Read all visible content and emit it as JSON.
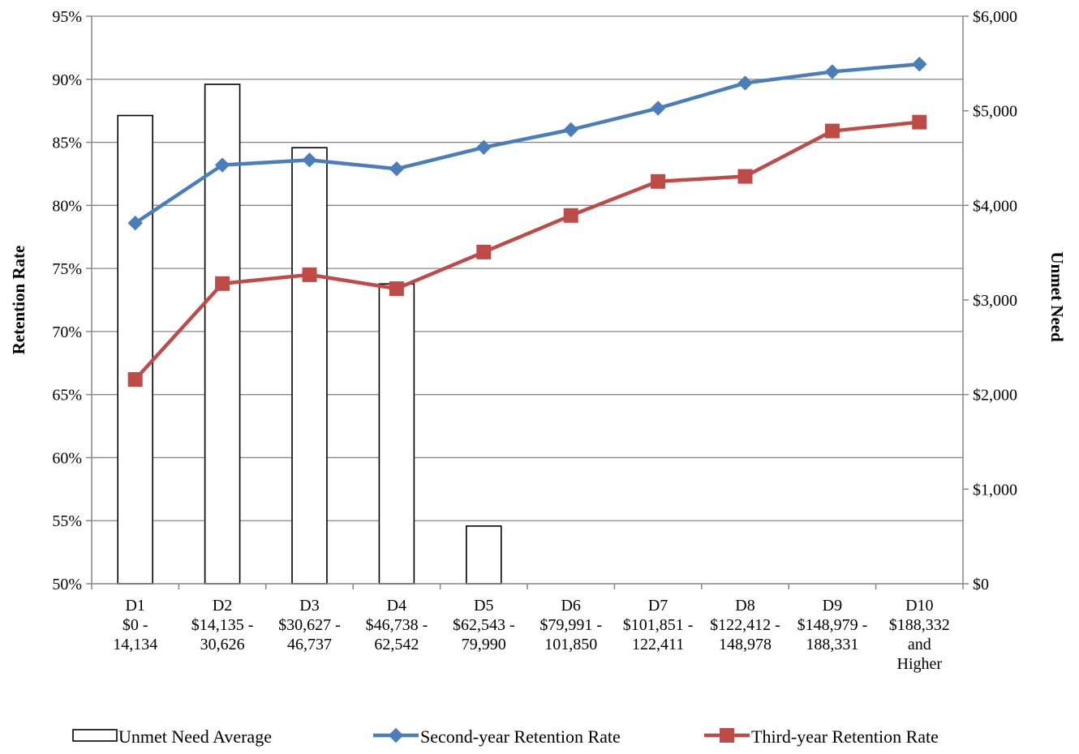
{
  "chart_data": {
    "type": "bar+line",
    "title": "",
    "categories": [
      [
        "D1",
        "$0 -",
        "14,134"
      ],
      [
        "D2",
        "$14,135 -",
        "30,626"
      ],
      [
        "D3",
        "$30,627 -",
        "46,737"
      ],
      [
        "D4",
        "$46,738 -",
        "62,542"
      ],
      [
        "D5",
        "$62,543 -",
        "79,990"
      ],
      [
        "D6",
        "$79,991 -",
        "101,850"
      ],
      [
        "D7",
        "$101,851 -",
        "122,411"
      ],
      [
        "D8",
        "$122,412 -",
        "148,978"
      ],
      [
        "D9",
        "$148,979 -",
        "188,331"
      ],
      [
        "D10",
        "$188,332",
        "and",
        "Higher"
      ]
    ],
    "ylabel": "Retention Rate",
    "y2label": "Unmet Need",
    "ylim": [
      50,
      95
    ],
    "y2lim": [
      0,
      6000
    ],
    "yticks": [
      "50%",
      "55%",
      "60%",
      "65%",
      "70%",
      "75%",
      "80%",
      "85%",
      "90%",
      "95%"
    ],
    "y2ticks": [
      "$0",
      "$1,000",
      "$2,000",
      "$3,000",
      "$4,000",
      "$5,000",
      "$6,000"
    ],
    "gridlines": true,
    "legend_position": "bottom",
    "series": [
      {
        "name": "Unmet Need Average",
        "kind": "bar",
        "axis": "right",
        "values": [
          4950,
          5280,
          4610,
          3170,
          610,
          0,
          0,
          0,
          0,
          0
        ]
      },
      {
        "name": "Second-year Retention Rate",
        "kind": "line",
        "axis": "left",
        "color": "#4a7ebb",
        "marker": "diamond",
        "values": [
          78.6,
          83.2,
          83.6,
          82.9,
          84.6,
          86.0,
          87.7,
          89.7,
          90.6,
          91.2
        ]
      },
      {
        "name": "Third-year Retention Rate",
        "kind": "line",
        "axis": "left",
        "color": "#be4b48",
        "marker": "square",
        "values": [
          66.2,
          73.8,
          74.5,
          73.4,
          76.3,
          79.2,
          81.9,
          82.3,
          85.9,
          86.6
        ]
      }
    ]
  }
}
